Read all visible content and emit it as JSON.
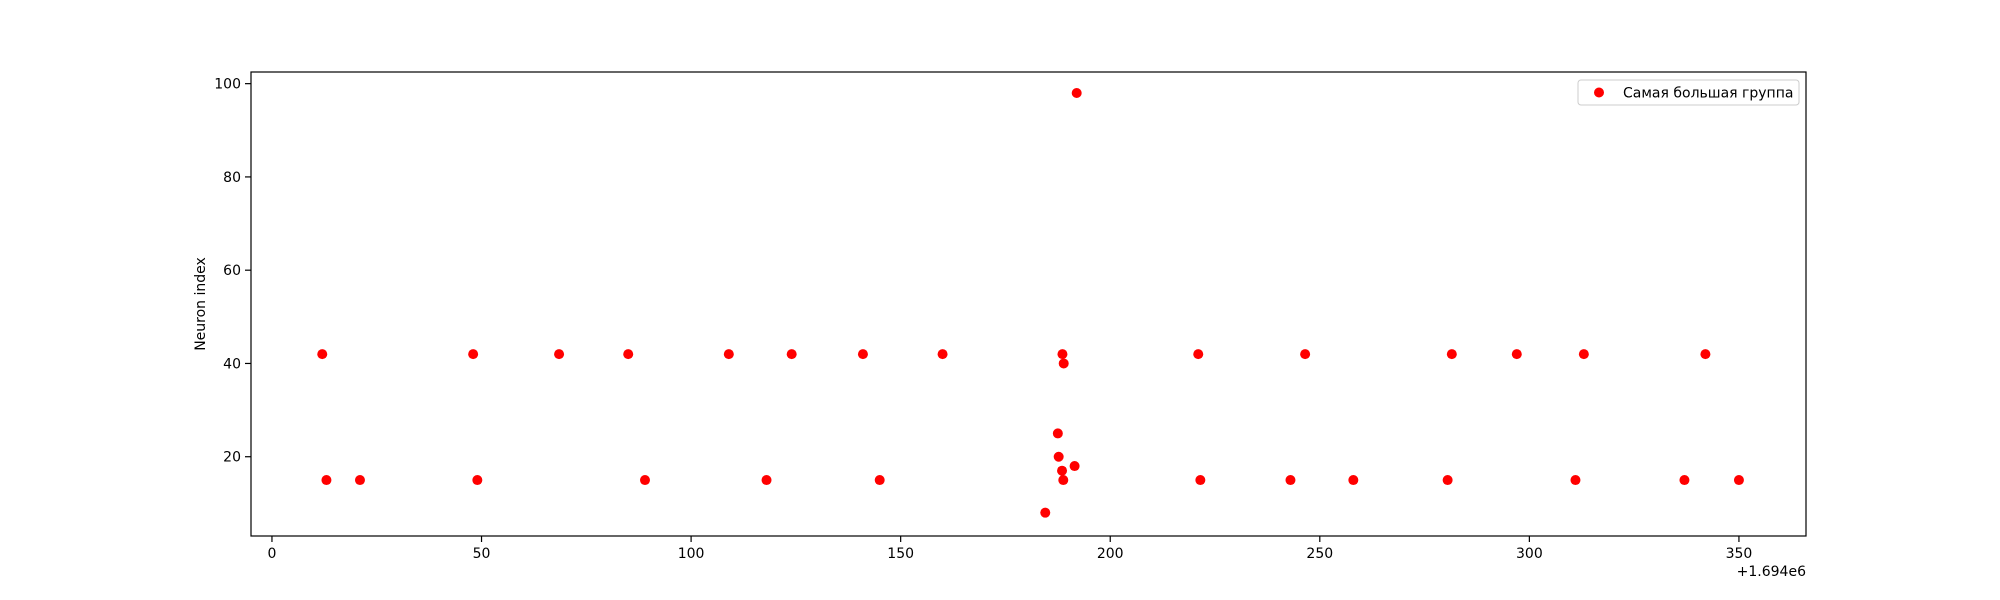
{
  "chart_data": {
    "type": "scatter",
    "title": "",
    "xlabel": "",
    "ylabel": "Neuron index",
    "x_offset_label": "+1.694e6",
    "xlim": [
      -5,
      366
    ],
    "ylim": [
      3,
      102.5
    ],
    "xticks": [
      0,
      50,
      100,
      150,
      200,
      250,
      300,
      350
    ],
    "yticks": [
      20,
      40,
      60,
      80,
      100
    ],
    "grid": false,
    "legend": "top-right",
    "series": [
      {
        "name": "Самая большая группа",
        "color": "#ff0000",
        "points": [
          [
            12,
            42
          ],
          [
            13,
            15
          ],
          [
            21,
            15
          ],
          [
            48,
            42
          ],
          [
            49,
            15
          ],
          [
            68.5,
            42
          ],
          [
            85,
            42
          ],
          [
            89,
            15
          ],
          [
            109,
            42
          ],
          [
            118,
            15
          ],
          [
            124,
            42
          ],
          [
            141,
            42
          ],
          [
            145,
            15
          ],
          [
            160,
            42
          ],
          [
            184.5,
            8
          ],
          [
            187.5,
            25
          ],
          [
            187.7,
            20
          ],
          [
            188.5,
            17
          ],
          [
            188.6,
            42
          ],
          [
            188.8,
            15
          ],
          [
            188.9,
            40
          ],
          [
            191.5,
            18
          ],
          [
            192,
            98
          ],
          [
            221,
            42
          ],
          [
            221.5,
            15
          ],
          [
            243,
            15
          ],
          [
            246.5,
            42
          ],
          [
            258,
            15
          ],
          [
            280.5,
            15
          ],
          [
            281.5,
            42
          ],
          [
            297,
            42
          ],
          [
            311,
            15
          ],
          [
            313,
            42
          ],
          [
            337,
            15
          ],
          [
            342,
            42
          ],
          [
            350,
            15
          ]
        ]
      }
    ]
  }
}
